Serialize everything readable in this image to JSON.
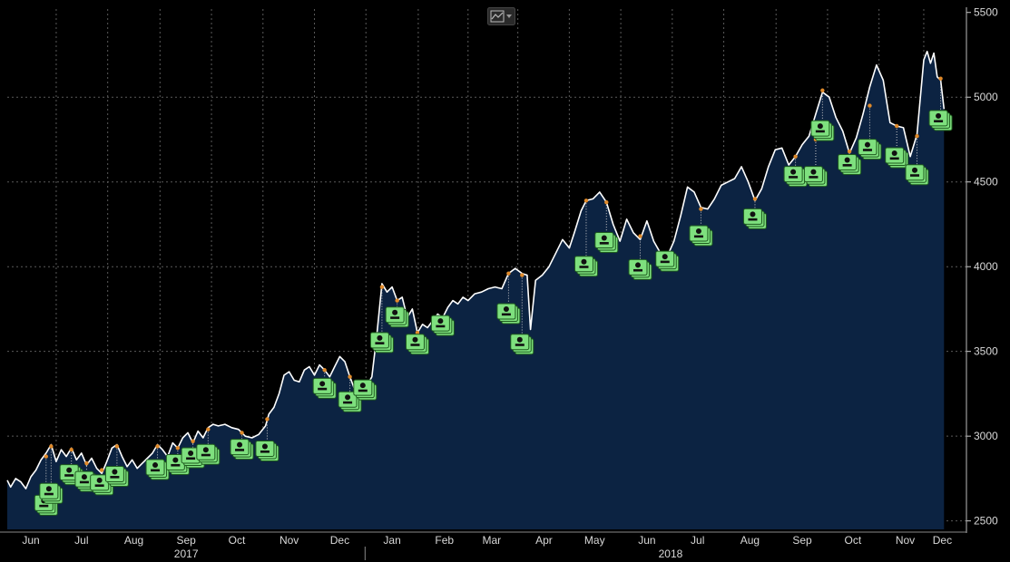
{
  "chart_data": {
    "type": "area",
    "title": "",
    "xlabel": "",
    "ylabel": "",
    "ylim": [
      2450,
      5520
    ],
    "yticks": [
      2500,
      3000,
      3500,
      4000,
      4500,
      5000,
      5500
    ],
    "grid": true,
    "x_start": "2017-06-01",
    "x_end": "2018-12-10",
    "month_ticks": [
      {
        "label": "Jun",
        "date": "2017-06-15"
      },
      {
        "label": "Jul",
        "date": "2017-07-15"
      },
      {
        "label": "Aug",
        "date": "2017-08-15"
      },
      {
        "label": "Sep",
        "date": "2017-09-15"
      },
      {
        "label": "Oct",
        "date": "2017-10-15"
      },
      {
        "label": "Nov",
        "date": "2017-11-15"
      },
      {
        "label": "Dec",
        "date": "2017-12-15"
      },
      {
        "label": "Jan",
        "date": "2018-01-15"
      },
      {
        "label": "Feb",
        "date": "2018-02-15"
      },
      {
        "label": "Mar",
        "date": "2018-03-15"
      },
      {
        "label": "Apr",
        "date": "2018-04-15"
      },
      {
        "label": "May",
        "date": "2018-05-15"
      },
      {
        "label": "Jun",
        "date": "2018-06-15"
      },
      {
        "label": "Jul",
        "date": "2018-07-15"
      },
      {
        "label": "Aug",
        "date": "2018-08-15"
      },
      {
        "label": "Sep",
        "date": "2018-09-15"
      },
      {
        "label": "Oct",
        "date": "2018-10-15"
      },
      {
        "label": "Nov",
        "date": "2018-11-15"
      },
      {
        "label": "Dec",
        "date": "2018-12-07"
      }
    ],
    "year_labels": [
      {
        "label": "2017",
        "date": "2017-09-15"
      },
      {
        "label": "2018",
        "date": "2018-06-29"
      }
    ],
    "year_divider_date": "2017-12-30",
    "series": [
      {
        "points": [
          [
            "2017-06-01",
            2740
          ],
          [
            "2017-06-03",
            2700
          ],
          [
            "2017-06-06",
            2750
          ],
          [
            "2017-06-09",
            2730
          ],
          [
            "2017-06-12",
            2690
          ],
          [
            "2017-06-15",
            2760
          ],
          [
            "2017-06-18",
            2800
          ],
          [
            "2017-06-21",
            2860
          ],
          [
            "2017-06-24",
            2900
          ],
          [
            "2017-06-27",
            2950
          ],
          [
            "2017-06-30",
            2850
          ],
          [
            "2017-07-03",
            2920
          ],
          [
            "2017-07-06",
            2880
          ],
          [
            "2017-07-09",
            2930
          ],
          [
            "2017-07-12",
            2860
          ],
          [
            "2017-07-15",
            2900
          ],
          [
            "2017-07-18",
            2830
          ],
          [
            "2017-07-21",
            2870
          ],
          [
            "2017-07-24",
            2810
          ],
          [
            "2017-07-27",
            2780
          ],
          [
            "2017-07-30",
            2850
          ],
          [
            "2017-08-02",
            2930
          ],
          [
            "2017-08-05",
            2950
          ],
          [
            "2017-08-08",
            2880
          ],
          [
            "2017-08-11",
            2820
          ],
          [
            "2017-08-14",
            2860
          ],
          [
            "2017-08-17",
            2810
          ],
          [
            "2017-08-20",
            2840
          ],
          [
            "2017-08-23",
            2870
          ],
          [
            "2017-08-26",
            2900
          ],
          [
            "2017-08-29",
            2950
          ],
          [
            "2017-09-01",
            2920
          ],
          [
            "2017-09-04",
            2880
          ],
          [
            "2017-09-07",
            2960
          ],
          [
            "2017-09-10",
            2930
          ],
          [
            "2017-09-13",
            2990
          ],
          [
            "2017-09-16",
            3020
          ],
          [
            "2017-09-19",
            2960
          ],
          [
            "2017-09-22",
            3030
          ],
          [
            "2017-09-25",
            2990
          ],
          [
            "2017-09-28",
            3050
          ],
          [
            "2017-10-01",
            3070
          ],
          [
            "2017-10-04",
            3060
          ],
          [
            "2017-10-08",
            3070
          ],
          [
            "2017-10-12",
            3050
          ],
          [
            "2017-10-16",
            3040
          ],
          [
            "2017-10-20",
            3000
          ],
          [
            "2017-10-24",
            2990
          ],
          [
            "2017-10-28",
            3010
          ],
          [
            "2017-11-01",
            3060
          ],
          [
            "2017-11-03",
            3130
          ],
          [
            "2017-11-06",
            3170
          ],
          [
            "2017-11-09",
            3250
          ],
          [
            "2017-11-12",
            3360
          ],
          [
            "2017-11-15",
            3380
          ],
          [
            "2017-11-18",
            3330
          ],
          [
            "2017-11-21",
            3320
          ],
          [
            "2017-11-24",
            3390
          ],
          [
            "2017-11-27",
            3410
          ],
          [
            "2017-11-30",
            3360
          ],
          [
            "2017-12-03",
            3420
          ],
          [
            "2017-12-06",
            3390
          ],
          [
            "2017-12-09",
            3350
          ],
          [
            "2017-12-12",
            3410
          ],
          [
            "2017-12-15",
            3470
          ],
          [
            "2017-12-18",
            3440
          ],
          [
            "2017-12-21",
            3350
          ],
          [
            "2017-12-24",
            3270
          ],
          [
            "2017-12-27",
            3310
          ],
          [
            "2017-12-30",
            3280
          ],
          [
            "2018-01-03",
            3350
          ],
          [
            "2018-01-06",
            3600
          ],
          [
            "2018-01-09",
            3900
          ],
          [
            "2018-01-12",
            3850
          ],
          [
            "2018-01-15",
            3880
          ],
          [
            "2018-01-18",
            3800
          ],
          [
            "2018-01-21",
            3820
          ],
          [
            "2018-01-24",
            3700
          ],
          [
            "2018-01-27",
            3750
          ],
          [
            "2018-01-30",
            3610
          ],
          [
            "2018-02-02",
            3660
          ],
          [
            "2018-02-05",
            3640
          ],
          [
            "2018-02-08",
            3680
          ],
          [
            "2018-02-11",
            3720
          ],
          [
            "2018-02-14",
            3700
          ],
          [
            "2018-02-17",
            3760
          ],
          [
            "2018-02-20",
            3800
          ],
          [
            "2018-02-23",
            3780
          ],
          [
            "2018-02-26",
            3820
          ],
          [
            "2018-03-01",
            3800
          ],
          [
            "2018-03-05",
            3840
          ],
          [
            "2018-03-09",
            3850
          ],
          [
            "2018-03-13",
            3870
          ],
          [
            "2018-03-17",
            3880
          ],
          [
            "2018-03-21",
            3870
          ],
          [
            "2018-03-25",
            3960
          ],
          [
            "2018-03-29",
            3990
          ],
          [
            "2018-04-02",
            3960
          ],
          [
            "2018-04-05",
            3950
          ],
          [
            "2018-04-07",
            3630
          ],
          [
            "2018-04-10",
            3920
          ],
          [
            "2018-04-14",
            3950
          ],
          [
            "2018-04-18",
            4000
          ],
          [
            "2018-04-22",
            4080
          ],
          [
            "2018-04-26",
            4160
          ],
          [
            "2018-04-30",
            4110
          ],
          [
            "2018-05-03",
            4200
          ],
          [
            "2018-05-07",
            4330
          ],
          [
            "2018-05-10",
            4390
          ],
          [
            "2018-05-14",
            4400
          ],
          [
            "2018-05-18",
            4440
          ],
          [
            "2018-05-22",
            4380
          ],
          [
            "2018-05-26",
            4250
          ],
          [
            "2018-05-30",
            4150
          ],
          [
            "2018-06-03",
            4280
          ],
          [
            "2018-06-07",
            4200
          ],
          [
            "2018-06-11",
            4160
          ],
          [
            "2018-06-15",
            4270
          ],
          [
            "2018-06-19",
            4150
          ],
          [
            "2018-06-23",
            4080
          ],
          [
            "2018-06-27",
            4060
          ],
          [
            "2018-07-01",
            4150
          ],
          [
            "2018-07-05",
            4300
          ],
          [
            "2018-07-09",
            4470
          ],
          [
            "2018-07-13",
            4440
          ],
          [
            "2018-07-17",
            4350
          ],
          [
            "2018-07-21",
            4340
          ],
          [
            "2018-07-25",
            4400
          ],
          [
            "2018-07-29",
            4480
          ],
          [
            "2018-08-02",
            4500
          ],
          [
            "2018-08-06",
            4520
          ],
          [
            "2018-08-10",
            4590
          ],
          [
            "2018-08-14",
            4500
          ],
          [
            "2018-08-18",
            4390
          ],
          [
            "2018-08-22",
            4460
          ],
          [
            "2018-08-26",
            4590
          ],
          [
            "2018-08-30",
            4690
          ],
          [
            "2018-09-03",
            4700
          ],
          [
            "2018-09-07",
            4600
          ],
          [
            "2018-09-11",
            4650
          ],
          [
            "2018-09-15",
            4720
          ],
          [
            "2018-09-19",
            4770
          ],
          [
            "2018-09-23",
            4900
          ],
          [
            "2018-09-27",
            5030
          ],
          [
            "2018-10-01",
            5000
          ],
          [
            "2018-10-05",
            4880
          ],
          [
            "2018-10-09",
            4800
          ],
          [
            "2018-10-13",
            4670
          ],
          [
            "2018-10-17",
            4760
          ],
          [
            "2018-10-21",
            4900
          ],
          [
            "2018-10-25",
            5060
          ],
          [
            "2018-10-29",
            5190
          ],
          [
            "2018-11-02",
            5100
          ],
          [
            "2018-11-06",
            4850
          ],
          [
            "2018-11-10",
            4830
          ],
          [
            "2018-11-14",
            4820
          ],
          [
            "2018-11-18",
            4650
          ],
          [
            "2018-11-22",
            4780
          ],
          [
            "2018-11-26",
            5220
          ],
          [
            "2018-11-28",
            5270
          ],
          [
            "2018-11-30",
            5200
          ],
          [
            "2018-12-02",
            5260
          ],
          [
            "2018-12-04",
            5120
          ],
          [
            "2018-12-06",
            5100
          ],
          [
            "2018-12-08",
            4930
          ]
        ]
      }
    ],
    "event_markers": [
      {
        "date": "2017-06-24",
        "value": 2880,
        "badge": 2590
      },
      {
        "date": "2017-06-27",
        "value": 2940,
        "badge": 2660
      },
      {
        "date": "2017-07-09",
        "value": 2920,
        "badge": 2770
      },
      {
        "date": "2017-07-18",
        "value": 2840,
        "badge": 2730
      },
      {
        "date": "2017-07-27",
        "value": 2800,
        "badge": 2710
      },
      {
        "date": "2017-08-05",
        "value": 2940,
        "badge": 2760
      },
      {
        "date": "2017-08-29",
        "value": 2940,
        "badge": 2800
      },
      {
        "date": "2017-09-10",
        "value": 2930,
        "badge": 2830
      },
      {
        "date": "2017-09-19",
        "value": 2970,
        "badge": 2870
      },
      {
        "date": "2017-09-28",
        "value": 3040,
        "badge": 2890
      },
      {
        "date": "2017-10-18",
        "value": 3020,
        "badge": 2920
      },
      {
        "date": "2017-11-02",
        "value": 3100,
        "badge": 2910
      },
      {
        "date": "2017-12-06",
        "value": 3390,
        "badge": 3280
      },
      {
        "date": "2017-12-21",
        "value": 3350,
        "badge": 3200
      },
      {
        "date": "2017-12-30",
        "value": 3280,
        "badge": 3270
      },
      {
        "date": "2018-01-09",
        "value": 3880,
        "badge": 3550
      },
      {
        "date": "2018-01-18",
        "value": 3800,
        "badge": 3700
      },
      {
        "date": "2018-01-30",
        "value": 3610,
        "badge": 3540
      },
      {
        "date": "2018-02-14",
        "value": 3700,
        "badge": 3650
      },
      {
        "date": "2018-03-25",
        "value": 3960,
        "badge": 3720
      },
      {
        "date": "2018-04-02",
        "value": 3950,
        "badge": 3540
      },
      {
        "date": "2018-05-10",
        "value": 4390,
        "badge": 4000
      },
      {
        "date": "2018-05-22",
        "value": 4380,
        "badge": 4140
      },
      {
        "date": "2018-06-11",
        "value": 4180,
        "badge": 3980
      },
      {
        "date": "2018-06-27",
        "value": 4070,
        "badge": 4030
      },
      {
        "date": "2018-07-17",
        "value": 4340,
        "badge": 4180
      },
      {
        "date": "2018-08-18",
        "value": 4400,
        "badge": 4280
      },
      {
        "date": "2018-09-11",
        "value": 4650,
        "badge": 4530
      },
      {
        "date": "2018-09-23",
        "value": 4750,
        "badge": 4530
      },
      {
        "date": "2018-09-27",
        "value": 5040,
        "badge": 4800
      },
      {
        "date": "2018-10-13",
        "value": 4680,
        "badge": 4600
      },
      {
        "date": "2018-10-25",
        "value": 4950,
        "badge": 4690
      },
      {
        "date": "2018-11-10",
        "value": 4830,
        "badge": 4640
      },
      {
        "date": "2018-11-22",
        "value": 4770,
        "badge": 4540
      },
      {
        "date": "2018-12-06",
        "value": 5110,
        "badge": 4860
      }
    ],
    "colors": {
      "line": "#ffffff",
      "area": "#0c2342",
      "marker": "#e08a2a",
      "badge": "#7ee07e",
      "background": "#000000",
      "grid": "#5a5a5a",
      "axis_text": "#d8d8d8"
    }
  },
  "toolbar": {
    "chart_type_icon": "line-chart-icon",
    "dropdown_icon": "chevron-down-icon"
  }
}
